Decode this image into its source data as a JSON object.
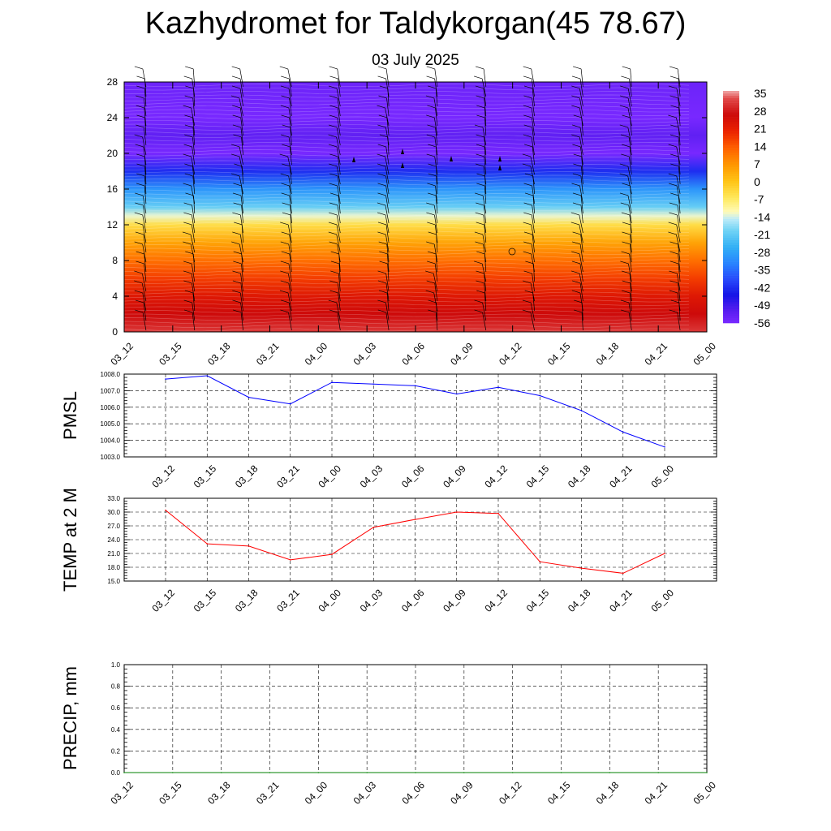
{
  "title": "Kazhydromet for Taldykorgan(45 78.67)",
  "subtitle": "03 July 2025",
  "chart_data": [
    {
      "type": "heatmap",
      "panel": "temperature-wind-cross-section",
      "x_tick_labels": [
        "03_12",
        "03_15",
        "03_18",
        "03_21",
        "04_00",
        "04_03",
        "04_06",
        "04_09",
        "04_12",
        "04_15",
        "04_18",
        "04_21",
        "05_00"
      ],
      "y_tick_labels": [
        "0",
        "4",
        "8",
        "12",
        "16",
        "20",
        "24",
        "28"
      ],
      "ylim": [
        0,
        28
      ],
      "colorbar_labels": [
        "35",
        "28",
        "21",
        "14",
        "7",
        "0",
        "-7",
        "-14",
        "-21",
        "-28",
        "-35",
        "-42",
        "-49",
        "-56"
      ],
      "colorbar_range": [
        -60,
        38
      ],
      "temperature_profile": [
        {
          "level": 0,
          "value": 33
        },
        {
          "level": 2,
          "value": 28
        },
        {
          "level": 4,
          "value": 24
        },
        {
          "level": 6,
          "value": 18
        },
        {
          "level": 8,
          "value": 12
        },
        {
          "level": 10,
          "value": 5
        },
        {
          "level": 12,
          "value": -5
        },
        {
          "level": 13,
          "value": -14
        },
        {
          "level": 14,
          "value": -22
        },
        {
          "level": 16,
          "value": -32
        },
        {
          "level": 18,
          "value": -45
        },
        {
          "level": 20,
          "value": -60
        },
        {
          "level": 22,
          "value": -56
        },
        {
          "level": 24,
          "value": -60
        },
        {
          "level": 28,
          "value": -58
        }
      ],
      "colorbar_position": "right"
    },
    {
      "type": "line",
      "panel": "pmsl",
      "ylabel": "PMSL",
      "x": [
        "03_12",
        "03_15",
        "03_18",
        "03_21",
        "04_00",
        "04_03",
        "04_06",
        "04_09",
        "04_12",
        "04_15",
        "04_18",
        "04_21",
        "05_00"
      ],
      "values": [
        1007.7,
        1007.9,
        1006.6,
        1006.2,
        1007.5,
        1007.4,
        1007.3,
        1006.8,
        1007.2,
        1006.7,
        1005.8,
        1004.5,
        1003.6
      ],
      "ylim": [
        1003.0,
        1008.0
      ],
      "y_tick_labels": [
        "1003.0",
        "1004.0",
        "1005.0",
        "1006.0",
        "1007.0",
        "1008.0"
      ],
      "color": "#0000ff",
      "grid": true
    },
    {
      "type": "line",
      "panel": "temp-2m",
      "ylabel": "TEMP at 2 M",
      "x": [
        "03_12",
        "03_15",
        "03_18",
        "03_21",
        "04_00",
        "04_03",
        "04_06",
        "04_09",
        "04_12",
        "04_15",
        "04_18",
        "04_21",
        "05_00"
      ],
      "values": [
        30.4,
        23.1,
        22.6,
        19.6,
        20.8,
        26.7,
        28.4,
        30.0,
        29.7,
        19.2,
        17.8,
        16.7,
        21.0
      ],
      "ylim": [
        15.0,
        33.0
      ],
      "y_tick_labels": [
        "15.0",
        "18.0",
        "21.0",
        "24.0",
        "27.0",
        "30.0",
        "33.0"
      ],
      "color": "#ff0000",
      "grid": true
    },
    {
      "type": "line",
      "panel": "precip",
      "ylabel": "PRECIP, mm",
      "x": [
        "03_12",
        "03_15",
        "03_18",
        "03_21",
        "04_00",
        "04_03",
        "04_06",
        "04_09",
        "04_12",
        "04_15",
        "04_18",
        "04_21",
        "05_00"
      ],
      "values": [
        0,
        0,
        0,
        0,
        0,
        0,
        0,
        0,
        0,
        0,
        0,
        0,
        0
      ],
      "ylim": [
        0,
        1.0
      ],
      "y_tick_labels": [
        "0.0",
        "0.2",
        "0.4",
        "0.6",
        "0.8",
        "1.0"
      ],
      "color": "#008000",
      "grid": true
    }
  ]
}
